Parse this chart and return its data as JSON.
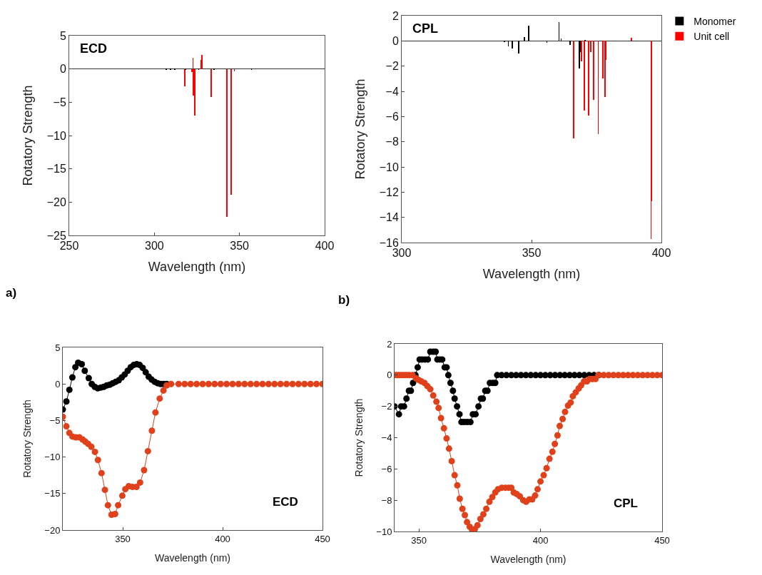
{
  "chart_data": [
    {
      "type": "bar",
      "title": "ECD",
      "xlabel": "Wavelength (nm)",
      "ylabel": "Rotatory Strength",
      "xlim": [
        250,
        400
      ],
      "xticks": [
        250,
        300,
        350,
        400
      ],
      "ylim": [
        -25,
        5
      ],
      "yticks": [
        -25,
        -20,
        -15,
        -10,
        -5,
        0,
        5
      ],
      "annotations": [
        "a)"
      ],
      "series": [
        {
          "color": "#000000",
          "x": [
            307,
            309.5,
            312,
            318.5,
            326,
            335,
            357
          ],
          "values": [
            -0.1,
            -0.1,
            -0.1,
            -0.1,
            -0.1,
            -0.1,
            -0.1
          ]
        },
        {
          "color": "#ff0000",
          "x": [
            317.8,
            322.2,
            322.7,
            322.95,
            323.65,
            327.3,
            328.0,
            333.5,
            342.7,
            345.1,
            347.0
          ],
          "values": [
            -2.6,
            -0.5,
            1.7,
            -4.0,
            -7.0,
            1.4,
            2.1,
            -4.2,
            -22.2,
            -18.9,
            -0.4
          ]
        }
      ]
    },
    {
      "type": "bar",
      "title": "CPL",
      "xlabel": "Wavelength (nm)",
      "ylabel": "Rotatory Strength",
      "xlim": [
        300,
        400
      ],
      "xticks": [
        300,
        350,
        400
      ],
      "ylim": [
        -16,
        2
      ],
      "yticks": [
        -16,
        -14,
        -12,
        -10,
        -8,
        -6,
        -4,
        -2,
        0,
        2
      ],
      "annotations": [
        "b)"
      ],
      "legend": "top right",
      "series": [
        {
          "name": "Monomer",
          "color": "#000000",
          "x": [
            339.6,
            341.1,
            342.6,
            345.0,
            347.2,
            348.8,
            355.9,
            360.6,
            361.4,
            364.8,
            368.4,
            368.8,
            370.6
          ],
          "values": [
            -0.1,
            -0.45,
            -0.6,
            -1.0,
            0.3,
            1.2,
            -0.15,
            1.5,
            0.2,
            -0.3,
            -2.2,
            -0.9,
            0.1
          ]
        },
        {
          "name": "Unit cell",
          "color": "#ff0000",
          "x": [
            366.3,
            369.3,
            370.3,
            371.9,
            372.8,
            374.0,
            375.7,
            377.4,
            378.3,
            378.6,
            388.5,
            396.0,
            396.3
          ],
          "values": [
            -7.75,
            -1.65,
            -5.5,
            -5.95,
            -0.9,
            -4.7,
            -7.4,
            -3.0,
            -4.45,
            -1.5,
            0.25,
            -15.7,
            -12.7
          ]
        }
      ]
    },
    {
      "type": "line",
      "title": "ECD",
      "xlabel": "Wavelength (nm)",
      "ylabel": "Rotatory Strength",
      "xlim": [
        320,
        450
      ],
      "xticks": [
        350,
        400,
        450
      ],
      "ylim": [
        -20,
        5
      ],
      "yticks": [
        -20,
        -15,
        -10,
        -5,
        0,
        5
      ],
      "marker": "circle",
      "line_style": "solid",
      "series": [
        {
          "color": "#000000",
          "x": [
            320.0,
            321.8,
            323.3,
            324.8,
            326.3,
            327.7,
            329.5,
            331.0,
            333.0,
            334.5,
            336.0,
            337.5,
            339.0,
            340.5,
            342.0,
            343.5,
            345.0,
            346.5,
            348.0,
            349.5,
            351.0,
            352.5,
            354.0,
            355.5,
            357.0,
            358.5,
            360.0,
            361.5,
            363.0,
            364.5,
            366.0,
            367.5,
            369.0,
            370.5,
            372.0
          ],
          "values": [
            -3.5,
            -2.4,
            -0.8,
            0.9,
            2.3,
            2.9,
            2.7,
            1.8,
            0.8,
            0.0,
            -0.4,
            -0.6,
            -0.5,
            -0.4,
            -0.2,
            -0.1,
            0.1,
            0.3,
            0.5,
            0.9,
            1.3,
            1.8,
            2.3,
            2.6,
            2.7,
            2.6,
            2.2,
            1.6,
            1.0,
            0.6,
            0.3,
            0.1,
            0.0,
            0.0,
            0.0
          ]
        },
        {
          "color": "#e0401a",
          "x": [
            320.0,
            321.8,
            323.3,
            324.8,
            326.5,
            328.3,
            329.9,
            331.3,
            332.7,
            334.3,
            336.1,
            337.6,
            339.4,
            341.1,
            342.6,
            344.4,
            346.2,
            347.7,
            349.8,
            351.3,
            353.0,
            354.9,
            356.9,
            358.7,
            360.7,
            362.6,
            364.6,
            366.4,
            368.5,
            370.4,
            372.0,
            374.2,
            378,
            381,
            384,
            387,
            390,
            393,
            396,
            399,
            402,
            405,
            408,
            411,
            414,
            417,
            420,
            423,
            426,
            429,
            432,
            435,
            438,
            441,
            444,
            447,
            450
          ],
          "values": [
            -4.5,
            -5.8,
            -6.7,
            -7.2,
            -7.3,
            -7.3,
            -7.6,
            -7.9,
            -8.2,
            -8.6,
            -9.3,
            -10.4,
            -12.2,
            -14.5,
            -16.6,
            -17.9,
            -17.8,
            -16.6,
            -15.3,
            -14.4,
            -14.0,
            -14.1,
            -14.1,
            -13.5,
            -11.8,
            -9.2,
            -6.4,
            -3.9,
            -2.0,
            -0.9,
            -0.2,
            0,
            0,
            0,
            0,
            0,
            0,
            0,
            0,
            0,
            0,
            0,
            0,
            0,
            0,
            0,
            0,
            0,
            0,
            0,
            0,
            0,
            0,
            0,
            0,
            0,
            0
          ]
        }
      ]
    },
    {
      "type": "line",
      "title": "CPL",
      "xlabel": "Wavelength (nm)",
      "ylabel": "Rotatory Strength",
      "xlim": [
        340,
        450
      ],
      "xticks": [
        350,
        400,
        450
      ],
      "ylim": [
        -10,
        2
      ],
      "yticks": [
        -10,
        -8,
        -6,
        -4,
        -2,
        0,
        2
      ],
      "marker": "circle",
      "line_style": "solid",
      "series": [
        {
          "color": "#000000",
          "x": [
            340.0,
            341.8,
            342.7,
            343.9,
            344.9,
            345.9,
            346.7,
            347.6,
            348.6,
            349.5,
            350.3,
            351.3,
            352.5,
            353.7,
            354.7,
            355.9,
            356.9,
            357.6,
            358.6,
            359.6,
            360.6,
            361.4,
            362.1,
            363.0,
            364.0,
            364.7,
            365.7,
            366.7,
            367.5,
            368.6,
            369.9,
            371.2,
            372.2,
            373.3,
            374.5,
            375.5,
            376.3,
            377.3,
            378.2,
            379.2,
            380.4,
            381.4,
            382.2,
            384,
            386,
            388,
            390,
            392,
            394,
            396,
            398,
            400,
            402,
            404,
            406,
            408,
            410,
            412,
            414,
            416,
            418,
            420,
            422,
            424
          ],
          "values": [
            -2,
            -2.5,
            -2,
            -2,
            -1.5,
            -1,
            -1,
            -0.5,
            0,
            0.5,
            1,
            1,
            1,
            1,
            1.5,
            1.5,
            1.5,
            1,
            1,
            1,
            0.5,
            0.5,
            0,
            -0.5,
            -1,
            -1.5,
            -2,
            -2.5,
            -3,
            -3,
            -3,
            -3,
            -2.5,
            -2.5,
            -2,
            -1.5,
            -1.5,
            -1,
            -1,
            -0.5,
            -0.5,
            -0.5,
            0,
            0,
            0,
            0,
            0,
            0,
            0,
            0,
            0,
            0,
            0,
            0,
            0,
            0,
            0,
            0,
            0,
            0,
            0,
            0,
            0,
            0
          ]
        },
        {
          "color": "#e0401a",
          "x": [
            340,
            341,
            342,
            343,
            344,
            345,
            346,
            347.4,
            348.8,
            349.8,
            351.0,
            352.3,
            353.5,
            354.7,
            355.9,
            357.2,
            358.1,
            359.1,
            360.3,
            361.4,
            362.4,
            363.5,
            364.7,
            365.8,
            366.8,
            367.9,
            368.9,
            369.8,
            370.9,
            371.9,
            373.0,
            374.1,
            375.3,
            376.5,
            377.7,
            379.0,
            380.2,
            381.4,
            382.5,
            384.1,
            385.6,
            386.9,
            388.0,
            389.0,
            390.2,
            391.5,
            392.9,
            394.1,
            395.4,
            396.6,
            397.8,
            398.8,
            400.0,
            401.3,
            402.5,
            403.7,
            404.9,
            405.9,
            407.0,
            407.9,
            409.1,
            410.1,
            411.3,
            412.4,
            413.3,
            414.5,
            415.7,
            416.7,
            417.9,
            419.1,
            420.2,
            421.4,
            422.6,
            423.8,
            426,
            428,
            430,
            432,
            434,
            436,
            438,
            440,
            442,
            444,
            446,
            448,
            450
          ],
          "values": [
            0,
            0,
            0,
            0,
            0,
            0,
            0,
            0,
            -0.2,
            -0.3,
            -0.4,
            -0.5,
            -0.7,
            -0.9,
            -1.3,
            -1.7,
            -2.1,
            -2.75,
            -3.4,
            -4.05,
            -4.7,
            -5.5,
            -6.4,
            -7.05,
            -7.9,
            -8.55,
            -8.95,
            -9.4,
            -9.7,
            -9.9,
            -9.85,
            -9.6,
            -9.2,
            -8.9,
            -8.55,
            -8.1,
            -7.8,
            -7.5,
            -7.3,
            -7.2,
            -7.2,
            -7.2,
            -7.2,
            -7.5,
            -7.6,
            -7.75,
            -8.0,
            -8.1,
            -7.95,
            -7.95,
            -7.7,
            -7.3,
            -6.8,
            -6.4,
            -5.95,
            -5.35,
            -4.9,
            -4.4,
            -3.85,
            -3.25,
            -2.8,
            -2.35,
            -1.95,
            -1.75,
            -1.35,
            -1.1,
            -0.85,
            -0.65,
            -0.4,
            -0.4,
            -0.25,
            -0.25,
            -0.25,
            0,
            0,
            0,
            0,
            0,
            0,
            0,
            0,
            0,
            0,
            0,
            0,
            0,
            0
          ]
        }
      ]
    }
  ]
}
